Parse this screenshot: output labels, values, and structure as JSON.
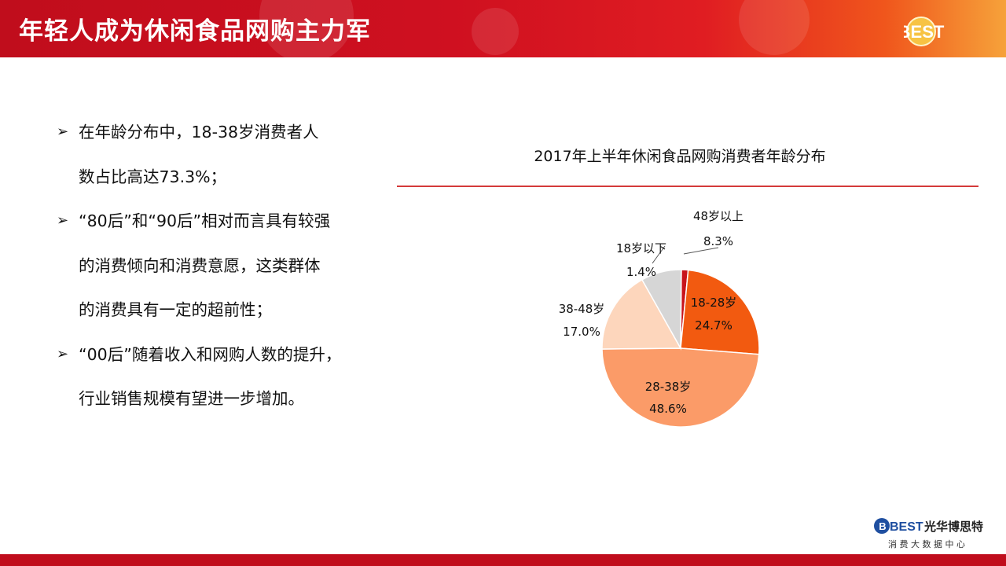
{
  "header": {
    "title": "年轻人成为休闲食品网购主力军",
    "logo_text": "BEST"
  },
  "bullets": [
    {
      "lines": [
        "在年龄分布中，18-38岁消费者人",
        "数占比高达73.3%；"
      ]
    },
    {
      "lines": [
        "“80后”和“90后”相对而言具有较强",
        "的消费倾向和消费意愿，这类群体",
        "的消费具有一定的超前性；"
      ]
    },
    {
      "lines": [
        "“00后”随着收入和网购人数的提升，",
        "行业销售规模有望进一步增加。"
      ]
    }
  ],
  "chart_data": {
    "type": "pie",
    "title": "2017年上半年休闲食品网购消费者年龄分布",
    "slices": [
      {
        "label": "18岁以下",
        "value": 1.4,
        "value_label": "1.4%",
        "color": "#c8141c"
      },
      {
        "label": "18-28岁",
        "value": 24.7,
        "value_label": "24.7%",
        "color": "#f25a10"
      },
      {
        "label": "28-38岁",
        "value": 48.6,
        "value_label": "48.6%",
        "color": "#fb9b68"
      },
      {
        "label": "38-48岁",
        "value": 17.0,
        "value_label": "17.0%",
        "color": "#fdd6bc"
      },
      {
        "label": "48岁以上",
        "value": 8.3,
        "value_label": "8.3%",
        "color": "#d6d6d6"
      }
    ]
  },
  "footer": {
    "logo_mark": "BEST",
    "company": "光华博思特",
    "subtitle": "消 费 大 数 据 中 心"
  },
  "colors": {
    "brand_red": "#c00d1c",
    "divider": "#d43a3a"
  }
}
